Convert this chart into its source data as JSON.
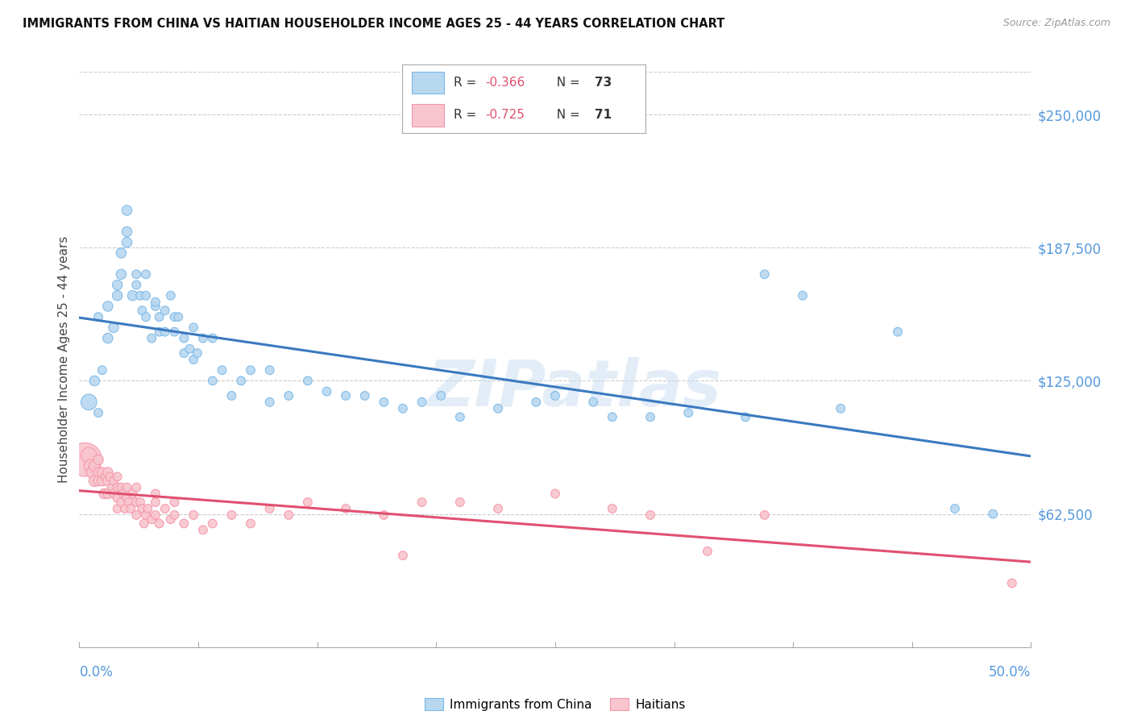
{
  "title": "IMMIGRANTS FROM CHINA VS HAITIAN HOUSEHOLDER INCOME AGES 25 - 44 YEARS CORRELATION CHART",
  "source": "Source: ZipAtlas.com",
  "ylabel": "Householder Income Ages 25 - 44 years",
  "ytick_values": [
    62500,
    125000,
    187500,
    250000
  ],
  "ymin": 0,
  "ymax": 270000,
  "xmin": 0.0,
  "xmax": 0.5,
  "legend_china_r": "R = -0.366",
  "legend_china_n": "N = 73",
  "legend_haiti_r": "R = -0.725",
  "legend_haiti_n": "N = 71",
  "china_color_edge": "#7ab8e8",
  "china_color_fill": "#b8d8f0",
  "haiti_color_edge": "#f595a8",
  "haiti_color_fill": "#f8c5ce",
  "trendline_china_color": "#3a7abf",
  "trendline_haiti_color": "#e05070",
  "watermark": "ZIPatlas",
  "china_scatter_x": [
    0.005,
    0.008,
    0.01,
    0.01,
    0.012,
    0.015,
    0.015,
    0.018,
    0.02,
    0.02,
    0.022,
    0.022,
    0.025,
    0.025,
    0.025,
    0.028,
    0.03,
    0.03,
    0.032,
    0.033,
    0.035,
    0.035,
    0.035,
    0.038,
    0.04,
    0.04,
    0.042,
    0.042,
    0.045,
    0.045,
    0.048,
    0.05,
    0.05,
    0.052,
    0.055,
    0.055,
    0.058,
    0.06,
    0.06,
    0.062,
    0.065,
    0.07,
    0.07,
    0.075,
    0.08,
    0.085,
    0.09,
    0.1,
    0.1,
    0.11,
    0.12,
    0.13,
    0.14,
    0.15,
    0.16,
    0.17,
    0.18,
    0.19,
    0.2,
    0.22,
    0.24,
    0.25,
    0.27,
    0.28,
    0.3,
    0.32,
    0.35,
    0.36,
    0.38,
    0.4,
    0.43,
    0.46,
    0.48
  ],
  "china_scatter_y": [
    115000,
    125000,
    110000,
    155000,
    130000,
    145000,
    160000,
    150000,
    165000,
    170000,
    175000,
    185000,
    190000,
    195000,
    205000,
    165000,
    170000,
    175000,
    165000,
    158000,
    155000,
    165000,
    175000,
    145000,
    160000,
    162000,
    155000,
    148000,
    158000,
    148000,
    165000,
    155000,
    148000,
    155000,
    145000,
    138000,
    140000,
    150000,
    135000,
    138000,
    145000,
    145000,
    125000,
    130000,
    118000,
    125000,
    130000,
    130000,
    115000,
    118000,
    125000,
    120000,
    118000,
    118000,
    115000,
    112000,
    115000,
    118000,
    108000,
    112000,
    115000,
    118000,
    115000,
    108000,
    108000,
    110000,
    108000,
    175000,
    165000,
    112000,
    148000,
    65000,
    62500
  ],
  "china_scatter_size": [
    200,
    80,
    60,
    60,
    60,
    80,
    80,
    80,
    80,
    80,
    80,
    80,
    80,
    80,
    80,
    80,
    60,
    60,
    60,
    60,
    60,
    60,
    60,
    60,
    60,
    60,
    60,
    60,
    60,
    60,
    60,
    60,
    60,
    60,
    60,
    60,
    60,
    60,
    60,
    60,
    60,
    60,
    60,
    60,
    60,
    60,
    60,
    60,
    60,
    60,
    60,
    60,
    60,
    60,
    60,
    60,
    60,
    60,
    60,
    60,
    60,
    60,
    60,
    60,
    60,
    60,
    60,
    60,
    60,
    60,
    60,
    60,
    60
  ],
  "haiti_scatter_x": [
    0.003,
    0.005,
    0.006,
    0.007,
    0.008,
    0.008,
    0.01,
    0.01,
    0.01,
    0.012,
    0.012,
    0.013,
    0.014,
    0.015,
    0.015,
    0.015,
    0.016,
    0.017,
    0.018,
    0.018,
    0.02,
    0.02,
    0.02,
    0.02,
    0.022,
    0.022,
    0.023,
    0.024,
    0.025,
    0.025,
    0.026,
    0.027,
    0.028,
    0.03,
    0.03,
    0.03,
    0.032,
    0.033,
    0.034,
    0.035,
    0.036,
    0.038,
    0.04,
    0.04,
    0.04,
    0.042,
    0.045,
    0.048,
    0.05,
    0.05,
    0.055,
    0.06,
    0.065,
    0.07,
    0.08,
    0.09,
    0.1,
    0.11,
    0.12,
    0.14,
    0.16,
    0.17,
    0.18,
    0.2,
    0.22,
    0.25,
    0.28,
    0.3,
    0.33,
    0.36,
    0.49
  ],
  "haiti_scatter_y": [
    88000,
    90000,
    85000,
    82000,
    85000,
    78000,
    88000,
    82000,
    78000,
    82000,
    78000,
    72000,
    80000,
    82000,
    78000,
    72000,
    80000,
    75000,
    78000,
    72000,
    80000,
    75000,
    70000,
    65000,
    75000,
    68000,
    72000,
    65000,
    75000,
    70000,
    68000,
    65000,
    72000,
    75000,
    68000,
    62000,
    68000,
    65000,
    58000,
    62000,
    65000,
    60000,
    72000,
    68000,
    62000,
    58000,
    65000,
    60000,
    68000,
    62000,
    58000,
    62000,
    55000,
    58000,
    62000,
    58000,
    65000,
    62000,
    68000,
    65000,
    62000,
    43000,
    68000,
    68000,
    65000,
    72000,
    65000,
    62000,
    45000,
    62000,
    30000
  ],
  "haiti_scatter_size": [
    900,
    200,
    150,
    120,
    100,
    100,
    80,
    80,
    80,
    80,
    80,
    80,
    80,
    80,
    80,
    80,
    60,
    60,
    60,
    60,
    60,
    60,
    60,
    60,
    60,
    60,
    60,
    60,
    60,
    60,
    60,
    60,
    60,
    60,
    60,
    60,
    60,
    60,
    60,
    60,
    60,
    60,
    60,
    60,
    60,
    60,
    60,
    60,
    60,
    60,
    60,
    60,
    60,
    60,
    60,
    60,
    60,
    60,
    60,
    60,
    60,
    60,
    60,
    60,
    60,
    60,
    60,
    60,
    60,
    60,
    60
  ]
}
